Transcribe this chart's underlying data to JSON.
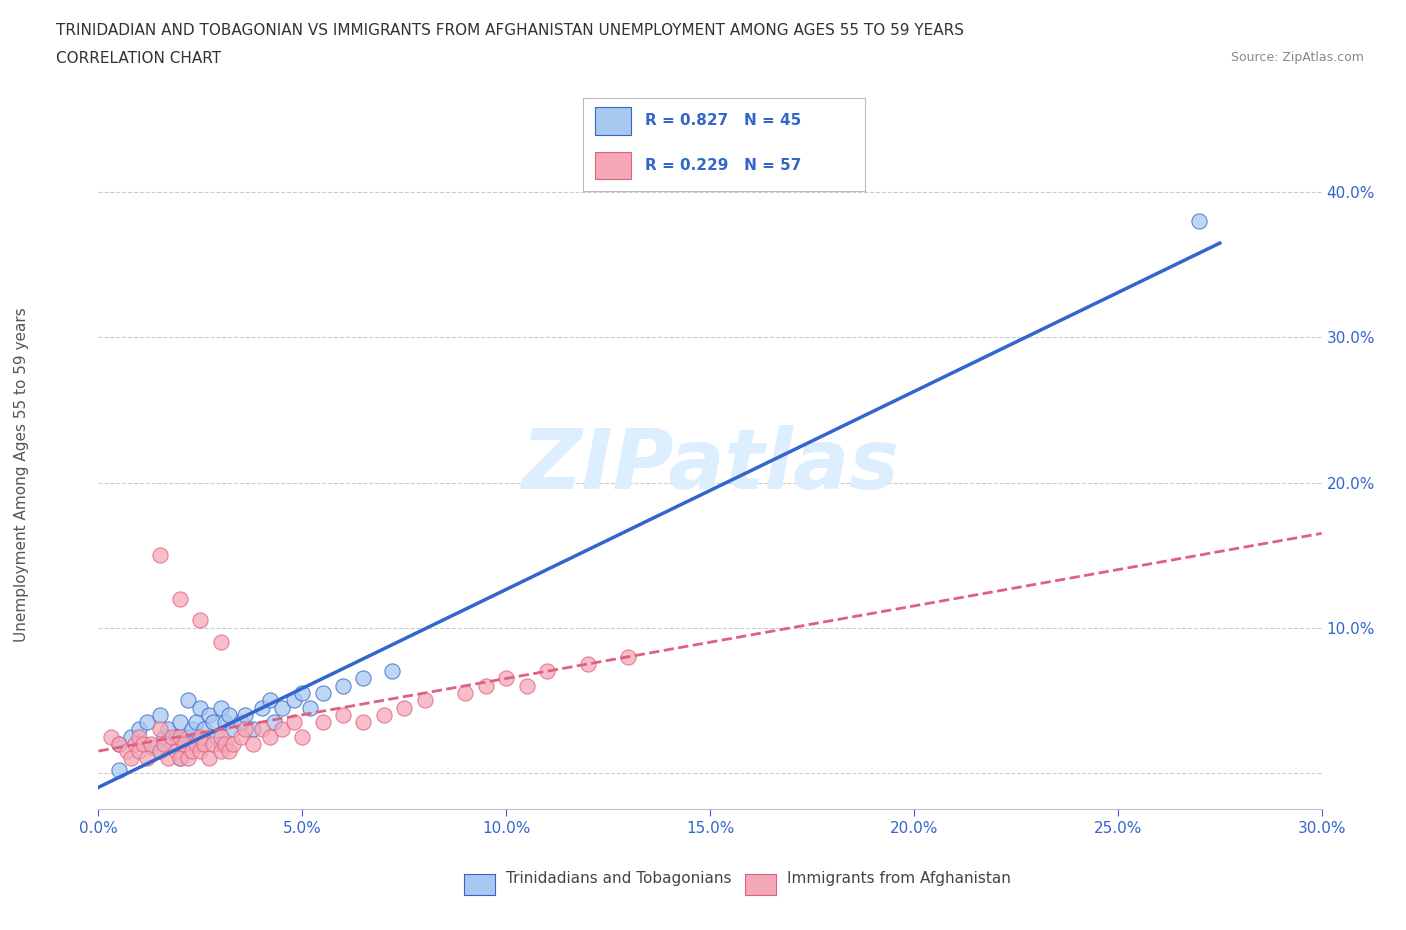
{
  "title_line1": "TRINIDADIAN AND TOBAGONIAN VS IMMIGRANTS FROM AFGHANISTAN UNEMPLOYMENT AMONG AGES 55 TO 59 YEARS",
  "title_line2": "CORRELATION CHART",
  "source_text": "Source: ZipAtlas.com",
  "ylabel": "Unemployment Among Ages 55 to 59 years",
  "R_blue": 0.827,
  "N_blue": 45,
  "R_pink": 0.229,
  "N_pink": 57,
  "blue_color": "#a8c8f0",
  "pink_color": "#f5a8b8",
  "blue_line_color": "#3366cc",
  "pink_line_color": "#e06080",
  "title_color": "#333333",
  "axis_label_color": "#3366cc",
  "watermark_text": "ZIPatlas",
  "watermark_color": "#ddeeff",
  "xlim": [
    0.0,
    0.3
  ],
  "ylim": [
    -0.025,
    0.43
  ],
  "xticks": [
    0.0,
    0.05,
    0.1,
    0.15,
    0.2,
    0.25,
    0.3
  ],
  "yticks_right": [
    0.0,
    0.1,
    0.2,
    0.3,
    0.4
  ],
  "blue_line_x0": 0.0,
  "blue_line_y0": -0.01,
  "blue_line_x1": 0.275,
  "blue_line_y1": 0.365,
  "pink_line_x0": 0.0,
  "pink_line_y0": 0.015,
  "pink_line_x1": 0.3,
  "pink_line_y1": 0.165,
  "blue_scatter_x": [
    0.005,
    0.008,
    0.01,
    0.012,
    0.013,
    0.015,
    0.015,
    0.016,
    0.017,
    0.018,
    0.019,
    0.02,
    0.02,
    0.021,
    0.022,
    0.022,
    0.023,
    0.024,
    0.025,
    0.025,
    0.026,
    0.027,
    0.028,
    0.029,
    0.03,
    0.03,
    0.031,
    0.032,
    0.033,
    0.035,
    0.036,
    0.038,
    0.04,
    0.042,
    0.043,
    0.045,
    0.048,
    0.05,
    0.052,
    0.055,
    0.06,
    0.065,
    0.072,
    0.005,
    0.27
  ],
  "blue_scatter_y": [
    0.02,
    0.025,
    0.03,
    0.035,
    0.018,
    0.015,
    0.04,
    0.025,
    0.03,
    0.02,
    0.025,
    0.01,
    0.035,
    0.02,
    0.025,
    0.05,
    0.03,
    0.035,
    0.02,
    0.045,
    0.03,
    0.04,
    0.035,
    0.025,
    0.02,
    0.045,
    0.035,
    0.04,
    0.03,
    0.035,
    0.04,
    0.03,
    0.045,
    0.05,
    0.035,
    0.045,
    0.05,
    0.055,
    0.045,
    0.055,
    0.06,
    0.065,
    0.07,
    0.002,
    0.38
  ],
  "pink_scatter_x": [
    0.003,
    0.005,
    0.007,
    0.008,
    0.009,
    0.01,
    0.01,
    0.011,
    0.012,
    0.013,
    0.015,
    0.015,
    0.016,
    0.017,
    0.018,
    0.019,
    0.02,
    0.02,
    0.021,
    0.022,
    0.023,
    0.024,
    0.025,
    0.025,
    0.026,
    0.027,
    0.028,
    0.03,
    0.03,
    0.031,
    0.032,
    0.033,
    0.035,
    0.036,
    0.038,
    0.04,
    0.042,
    0.045,
    0.048,
    0.05,
    0.055,
    0.06,
    0.065,
    0.07,
    0.075,
    0.08,
    0.09,
    0.095,
    0.1,
    0.105,
    0.11,
    0.12,
    0.13,
    0.015,
    0.02,
    0.025,
    0.03
  ],
  "pink_scatter_y": [
    0.025,
    0.02,
    0.015,
    0.01,
    0.02,
    0.025,
    0.015,
    0.02,
    0.01,
    0.02,
    0.015,
    0.03,
    0.02,
    0.01,
    0.025,
    0.015,
    0.01,
    0.025,
    0.02,
    0.01,
    0.015,
    0.02,
    0.015,
    0.025,
    0.02,
    0.01,
    0.02,
    0.015,
    0.025,
    0.02,
    0.015,
    0.02,
    0.025,
    0.03,
    0.02,
    0.03,
    0.025,
    0.03,
    0.035,
    0.025,
    0.035,
    0.04,
    0.035,
    0.04,
    0.045,
    0.05,
    0.055,
    0.06,
    0.065,
    0.06,
    0.07,
    0.075,
    0.08,
    0.15,
    0.12,
    0.105,
    0.09
  ],
  "legend_label_blue": "Trinidadians and Tobagonians",
  "legend_label_pink": "Immigrants from Afghanistan"
}
